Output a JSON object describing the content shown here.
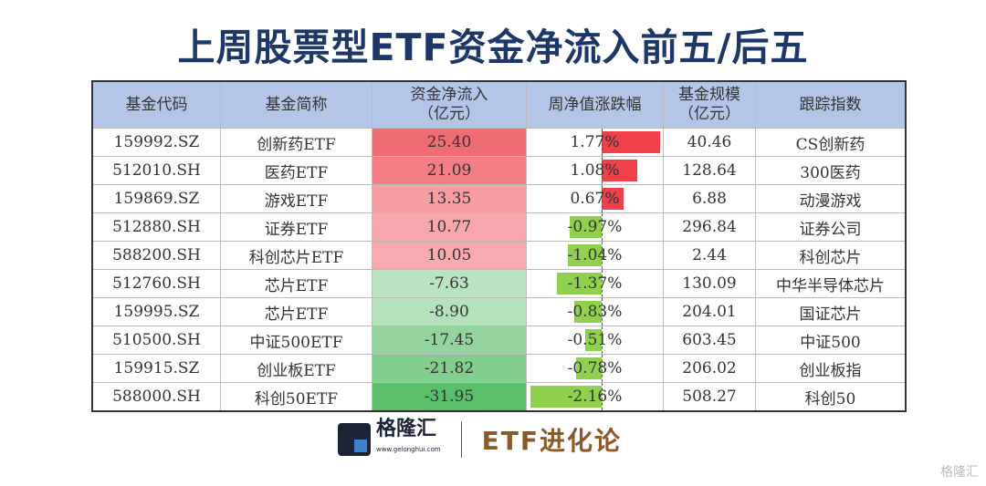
{
  "title": "上周股票型ETF资金净流入前五/后五",
  "headers": [
    "基金代码",
    "基金简称",
    "资金净流入\n（亿元）",
    "周净值涨跌幅",
    "基金规模\n（亿元）",
    "跟踪指数"
  ],
  "rows": [
    {
      "code": "159992.SZ",
      "name": "创新药ETF",
      "inflow": "25.40",
      "change": "1.77%",
      "size": "40.46",
      "index": "CS创新药"
    },
    {
      "code": "512010.SH",
      "name": "医药ETF",
      "inflow": "21.09",
      "change": "1.08%",
      "size": "128.64",
      "index": "300医药"
    },
    {
      "code": "159869.SZ",
      "name": "游戏ETF",
      "inflow": "13.35",
      "change": "0.67%",
      "size": "6.88",
      "index": "动漫游戏"
    },
    {
      "code": "512880.SH",
      "name": "证券ETF",
      "inflow": "10.77",
      "change": "-0.97%",
      "size": "296.84",
      "index": "证券公司"
    },
    {
      "code": "588200.SH",
      "name": "科创芯片ETF",
      "inflow": "10.05",
      "change": "-1.04%",
      "size": "2.44",
      "index": "科创芯片"
    },
    {
      "code": "512760.SH",
      "name": "芯片ETF",
      "inflow": "-7.63",
      "change": "-1.37%",
      "size": "130.09",
      "index": "中华半导体芯片"
    },
    {
      "code": "159995.SZ",
      "name": "芯片ETF",
      "inflow": "-8.90",
      "change": "-0.83%",
      "size": "204.01",
      "index": "国证芯片"
    },
    {
      "code": "510500.SH",
      "name": "中证500ETF",
      "inflow": "-17.45",
      "change": "-0.51%",
      "size": "603.45",
      "index": "中证500"
    },
    {
      "code": "159915.SZ",
      "name": "创业板ETF",
      "inflow": "-21.82",
      "change": "-0.78%",
      "size": "206.02",
      "index": "创业板指"
    },
    {
      "code": "588000.SH",
      "name": "科创50ETF",
      "inflow": "-31.95",
      "change": "-2.16%",
      "size": "508.27",
      "index": "科创50"
    }
  ],
  "colors": {
    "positive": "#f0525a",
    "negative": "#5bbf6a",
    "bar_positive": "#f0404a",
    "bar_negative": "#8fd14f",
    "header": "#b4c6e7",
    "title": "#1d3768"
  },
  "footer": {
    "brand": "格隆汇",
    "brand_url": "www.gelonghui.com",
    "column": "ETF进化论",
    "watermark": "格隆汇"
  }
}
